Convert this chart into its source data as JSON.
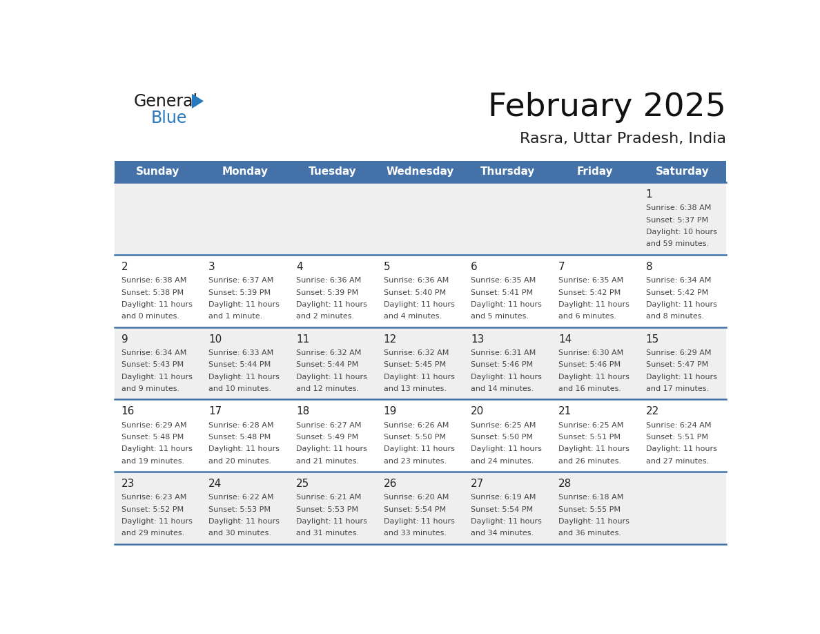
{
  "title": "February 2025",
  "subtitle": "Rasra, Uttar Pradesh, India",
  "days_of_week": [
    "Sunday",
    "Monday",
    "Tuesday",
    "Wednesday",
    "Thursday",
    "Friday",
    "Saturday"
  ],
  "header_bg": "#4472a8",
  "header_text_color": "#ffffff",
  "row_bg_odd": "#efefef",
  "row_bg_even": "#ffffff",
  "cell_text_color": "#444444",
  "day_number_color": "#222222",
  "border_color": "#4472a8",
  "logo_general_color": "#1a1a1a",
  "logo_blue_color": "#2878c0",
  "logo_triangle_color": "#2878c0",
  "calendar_data": [
    [
      null,
      null,
      null,
      null,
      null,
      null,
      {
        "day": 1,
        "sunrise": "6:38 AM",
        "sunset": "5:37 PM",
        "daylight_line1": "Daylight: 10 hours",
        "daylight_line2": "and 59 minutes."
      }
    ],
    [
      {
        "day": 2,
        "sunrise": "6:38 AM",
        "sunset": "5:38 PM",
        "daylight_line1": "Daylight: 11 hours",
        "daylight_line2": "and 0 minutes."
      },
      {
        "day": 3,
        "sunrise": "6:37 AM",
        "sunset": "5:39 PM",
        "daylight_line1": "Daylight: 11 hours",
        "daylight_line2": "and 1 minute."
      },
      {
        "day": 4,
        "sunrise": "6:36 AM",
        "sunset": "5:39 PM",
        "daylight_line1": "Daylight: 11 hours",
        "daylight_line2": "and 2 minutes."
      },
      {
        "day": 5,
        "sunrise": "6:36 AM",
        "sunset": "5:40 PM",
        "daylight_line1": "Daylight: 11 hours",
        "daylight_line2": "and 4 minutes."
      },
      {
        "day": 6,
        "sunrise": "6:35 AM",
        "sunset": "5:41 PM",
        "daylight_line1": "Daylight: 11 hours",
        "daylight_line2": "and 5 minutes."
      },
      {
        "day": 7,
        "sunrise": "6:35 AM",
        "sunset": "5:42 PM",
        "daylight_line1": "Daylight: 11 hours",
        "daylight_line2": "and 6 minutes."
      },
      {
        "day": 8,
        "sunrise": "6:34 AM",
        "sunset": "5:42 PM",
        "daylight_line1": "Daylight: 11 hours",
        "daylight_line2": "and 8 minutes."
      }
    ],
    [
      {
        "day": 9,
        "sunrise": "6:34 AM",
        "sunset": "5:43 PM",
        "daylight_line1": "Daylight: 11 hours",
        "daylight_line2": "and 9 minutes."
      },
      {
        "day": 10,
        "sunrise": "6:33 AM",
        "sunset": "5:44 PM",
        "daylight_line1": "Daylight: 11 hours",
        "daylight_line2": "and 10 minutes."
      },
      {
        "day": 11,
        "sunrise": "6:32 AM",
        "sunset": "5:44 PM",
        "daylight_line1": "Daylight: 11 hours",
        "daylight_line2": "and 12 minutes."
      },
      {
        "day": 12,
        "sunrise": "6:32 AM",
        "sunset": "5:45 PM",
        "daylight_line1": "Daylight: 11 hours",
        "daylight_line2": "and 13 minutes."
      },
      {
        "day": 13,
        "sunrise": "6:31 AM",
        "sunset": "5:46 PM",
        "daylight_line1": "Daylight: 11 hours",
        "daylight_line2": "and 14 minutes."
      },
      {
        "day": 14,
        "sunrise": "6:30 AM",
        "sunset": "5:46 PM",
        "daylight_line1": "Daylight: 11 hours",
        "daylight_line2": "and 16 minutes."
      },
      {
        "day": 15,
        "sunrise": "6:29 AM",
        "sunset": "5:47 PM",
        "daylight_line1": "Daylight: 11 hours",
        "daylight_line2": "and 17 minutes."
      }
    ],
    [
      {
        "day": 16,
        "sunrise": "6:29 AM",
        "sunset": "5:48 PM",
        "daylight_line1": "Daylight: 11 hours",
        "daylight_line2": "and 19 minutes."
      },
      {
        "day": 17,
        "sunrise": "6:28 AM",
        "sunset": "5:48 PM",
        "daylight_line1": "Daylight: 11 hours",
        "daylight_line2": "and 20 minutes."
      },
      {
        "day": 18,
        "sunrise": "6:27 AM",
        "sunset": "5:49 PM",
        "daylight_line1": "Daylight: 11 hours",
        "daylight_line2": "and 21 minutes."
      },
      {
        "day": 19,
        "sunrise": "6:26 AM",
        "sunset": "5:50 PM",
        "daylight_line1": "Daylight: 11 hours",
        "daylight_line2": "and 23 minutes."
      },
      {
        "day": 20,
        "sunrise": "6:25 AM",
        "sunset": "5:50 PM",
        "daylight_line1": "Daylight: 11 hours",
        "daylight_line2": "and 24 minutes."
      },
      {
        "day": 21,
        "sunrise": "6:25 AM",
        "sunset": "5:51 PM",
        "daylight_line1": "Daylight: 11 hours",
        "daylight_line2": "and 26 minutes."
      },
      {
        "day": 22,
        "sunrise": "6:24 AM",
        "sunset": "5:51 PM",
        "daylight_line1": "Daylight: 11 hours",
        "daylight_line2": "and 27 minutes."
      }
    ],
    [
      {
        "day": 23,
        "sunrise": "6:23 AM",
        "sunset": "5:52 PM",
        "daylight_line1": "Daylight: 11 hours",
        "daylight_line2": "and 29 minutes."
      },
      {
        "day": 24,
        "sunrise": "6:22 AM",
        "sunset": "5:53 PM",
        "daylight_line1": "Daylight: 11 hours",
        "daylight_line2": "and 30 minutes."
      },
      {
        "day": 25,
        "sunrise": "6:21 AM",
        "sunset": "5:53 PM",
        "daylight_line1": "Daylight: 11 hours",
        "daylight_line2": "and 31 minutes."
      },
      {
        "day": 26,
        "sunrise": "6:20 AM",
        "sunset": "5:54 PM",
        "daylight_line1": "Daylight: 11 hours",
        "daylight_line2": "and 33 minutes."
      },
      {
        "day": 27,
        "sunrise": "6:19 AM",
        "sunset": "5:54 PM",
        "daylight_line1": "Daylight: 11 hours",
        "daylight_line2": "and 34 minutes."
      },
      {
        "day": 28,
        "sunrise": "6:18 AM",
        "sunset": "5:55 PM",
        "daylight_line1": "Daylight: 11 hours",
        "daylight_line2": "and 36 minutes."
      },
      null
    ]
  ]
}
